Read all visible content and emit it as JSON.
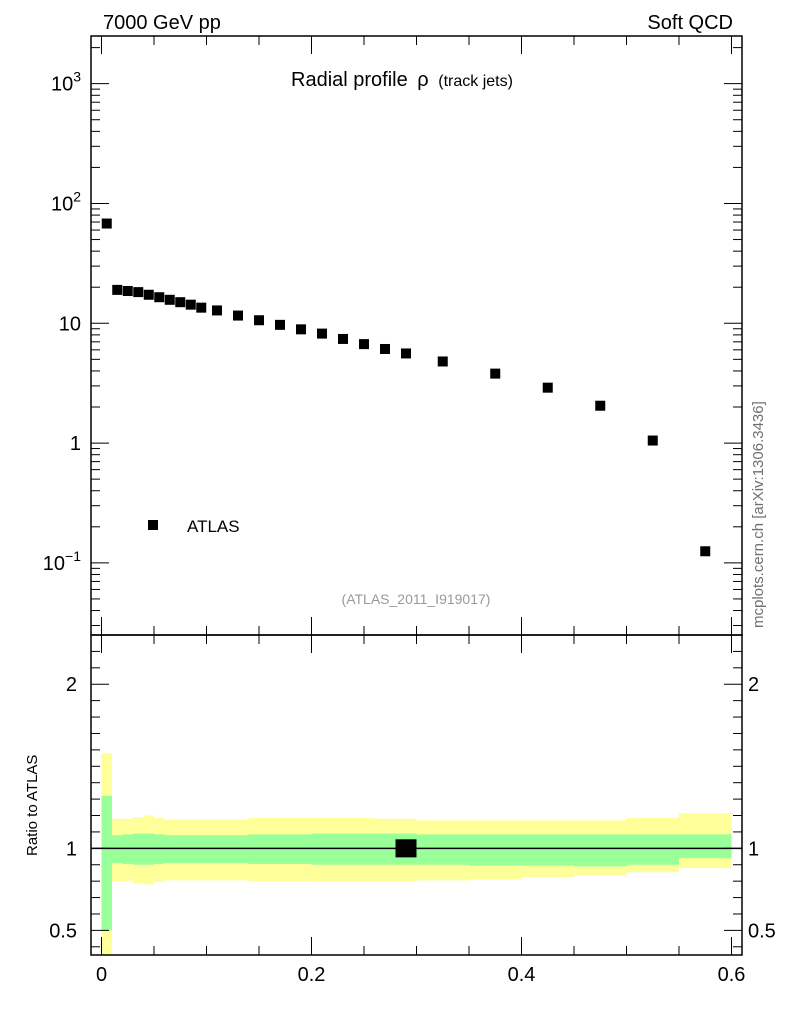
{
  "header": {
    "left": "7000 GeV pp",
    "right": "Soft QCD"
  },
  "side_label": "mcplots.cern.ch [arXiv:1306.3436]",
  "chart_data": [
    {
      "type": "scatter",
      "title": "Radial profile",
      "title_symbol": "ρ",
      "title_suffix": "(track jets)",
      "analysis_id": "(ATLAS_2011_I919017)",
      "xlim": [
        -0.01,
        0.61
      ],
      "ylim": [
        0.025,
        2500
      ],
      "yscale": "log",
      "y_ticks": [
        {
          "value": 1000,
          "base": "10",
          "exp": "3"
        },
        {
          "value": 100,
          "base": "10",
          "exp": "2"
        },
        {
          "value": 10,
          "base": "10",
          "exp": ""
        },
        {
          "value": 1,
          "base": "1",
          "exp": ""
        },
        {
          "value": 0.1,
          "base": "10",
          "exp": "−1"
        }
      ],
      "legend": {
        "label": "ATLAS",
        "position": "lower-left"
      },
      "series": [
        {
          "name": "ATLAS",
          "x": [
            0.005,
            0.015,
            0.025,
            0.035,
            0.045,
            0.055,
            0.065,
            0.075,
            0.085,
            0.095,
            0.11,
            0.13,
            0.15,
            0.17,
            0.19,
            0.21,
            0.23,
            0.25,
            0.27,
            0.29,
            0.325,
            0.375,
            0.425,
            0.475,
            0.525,
            0.575
          ],
          "y": [
            68,
            19,
            18.6,
            18.2,
            17.3,
            16.5,
            15.7,
            15.0,
            14.3,
            13.5,
            12.8,
            11.6,
            10.6,
            9.7,
            8.9,
            8.2,
            7.4,
            6.7,
            6.1,
            5.6,
            4.8,
            3.8,
            2.9,
            2.05,
            1.05,
            0.125
          ]
        }
      ]
    },
    {
      "type": "area",
      "ylabel": "Ratio to ATLAS",
      "xlim": [
        -0.01,
        0.61
      ],
      "ylim": [
        0.35,
        2.3
      ],
      "x_ticks": [
        0,
        0.2,
        0.4,
        0.6
      ],
      "x_tick_labels": [
        "0",
        "0.2",
        "0.4",
        "0.6"
      ],
      "y_ticks": [
        0.5,
        1,
        2
      ],
      "y_tick_labels": [
        "0.5",
        "1",
        "2"
      ],
      "bins": [
        {
          "x0": 0.0,
          "x1": 0.01,
          "green": [
            0.5,
            1.32
          ],
          "yellow": [
            0.3,
            1.58
          ]
        },
        {
          "x0": 0.01,
          "x1": 0.02,
          "green": [
            0.91,
            1.08
          ],
          "yellow": [
            0.8,
            1.18
          ]
        },
        {
          "x0": 0.02,
          "x1": 0.03,
          "green": [
            0.905,
            1.085
          ],
          "yellow": [
            0.8,
            1.18
          ]
        },
        {
          "x0": 0.03,
          "x1": 0.04,
          "green": [
            0.9,
            1.09
          ],
          "yellow": [
            0.785,
            1.19
          ]
        },
        {
          "x0": 0.04,
          "x1": 0.05,
          "green": [
            0.9,
            1.09
          ],
          "yellow": [
            0.78,
            1.2
          ]
        },
        {
          "x0": 0.05,
          "x1": 0.06,
          "green": [
            0.905,
            1.085
          ],
          "yellow": [
            0.795,
            1.185
          ]
        },
        {
          "x0": 0.06,
          "x1": 0.07,
          "green": [
            0.91,
            1.08
          ],
          "yellow": [
            0.805,
            1.175
          ]
        },
        {
          "x0": 0.07,
          "x1": 0.08,
          "green": [
            0.91,
            1.08
          ],
          "yellow": [
            0.805,
            1.175
          ]
        },
        {
          "x0": 0.08,
          "x1": 0.09,
          "green": [
            0.91,
            1.08
          ],
          "yellow": [
            0.805,
            1.175
          ]
        },
        {
          "x0": 0.09,
          "x1": 0.1,
          "green": [
            0.91,
            1.08
          ],
          "yellow": [
            0.805,
            1.175
          ]
        },
        {
          "x0": 0.1,
          "x1": 0.12,
          "green": [
            0.91,
            1.08
          ],
          "yellow": [
            0.805,
            1.175
          ]
        },
        {
          "x0": 0.12,
          "x1": 0.14,
          "green": [
            0.91,
            1.08
          ],
          "yellow": [
            0.805,
            1.175
          ]
        },
        {
          "x0": 0.14,
          "x1": 0.16,
          "green": [
            0.905,
            1.085
          ],
          "yellow": [
            0.8,
            1.185
          ]
        },
        {
          "x0": 0.16,
          "x1": 0.18,
          "green": [
            0.905,
            1.085
          ],
          "yellow": [
            0.8,
            1.185
          ]
        },
        {
          "x0": 0.18,
          "x1": 0.2,
          "green": [
            0.905,
            1.085
          ],
          "yellow": [
            0.8,
            1.185
          ]
        },
        {
          "x0": 0.2,
          "x1": 0.22,
          "green": [
            0.9,
            1.09
          ],
          "yellow": [
            0.795,
            1.185
          ]
        },
        {
          "x0": 0.22,
          "x1": 0.24,
          "green": [
            0.9,
            1.09
          ],
          "yellow": [
            0.795,
            1.185
          ]
        },
        {
          "x0": 0.24,
          "x1": 0.26,
          "green": [
            0.9,
            1.09
          ],
          "yellow": [
            0.795,
            1.185
          ]
        },
        {
          "x0": 0.26,
          "x1": 0.28,
          "green": [
            0.9,
            1.09
          ],
          "yellow": [
            0.795,
            1.18
          ]
        },
        {
          "x0": 0.28,
          "x1": 0.3,
          "green": [
            0.9,
            1.09
          ],
          "yellow": [
            0.795,
            1.18
          ]
        },
        {
          "x0": 0.3,
          "x1": 0.35,
          "green": [
            0.9,
            1.085
          ],
          "yellow": [
            0.805,
            1.17
          ]
        },
        {
          "x0": 0.35,
          "x1": 0.4,
          "green": [
            0.895,
            1.085
          ],
          "yellow": [
            0.81,
            1.17
          ]
        },
        {
          "x0": 0.4,
          "x1": 0.45,
          "green": [
            0.895,
            1.085
          ],
          "yellow": [
            0.825,
            1.17
          ]
        },
        {
          "x0": 0.45,
          "x1": 0.5,
          "green": [
            0.89,
            1.085
          ],
          "yellow": [
            0.835,
            1.17
          ]
        },
        {
          "x0": 0.5,
          "x1": 0.55,
          "green": [
            0.9,
            1.085
          ],
          "yellow": [
            0.855,
            1.185
          ]
        },
        {
          "x0": 0.55,
          "x1": 0.6,
          "green": [
            0.94,
            1.085
          ],
          "yellow": [
            0.88,
            1.215
          ]
        }
      ],
      "ratio_marker": {
        "x": 0.29,
        "x_half_width": 0.01,
        "y": 1.0,
        "y_err": 0.055
      },
      "colors": {
        "green": "#99ff99",
        "yellow": "#ffff99"
      }
    }
  ]
}
